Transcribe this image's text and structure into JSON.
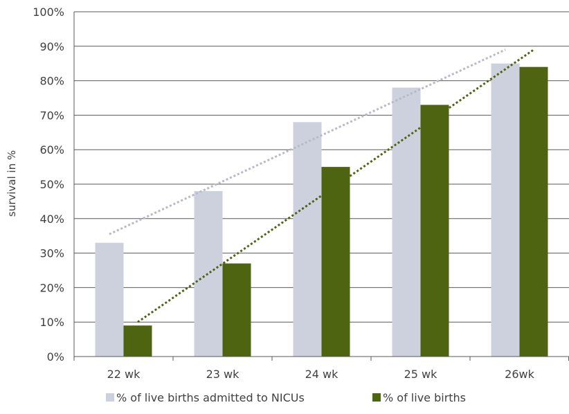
{
  "chart_data": {
    "type": "bar",
    "title": "",
    "xlabel": "",
    "ylabel": "survival in %",
    "ylim": [
      0,
      100
    ],
    "y_ticks": [
      "0%",
      "10%",
      "20%",
      "30%",
      "40%",
      "50%",
      "60%",
      "70%",
      "80%",
      "90%",
      "100%"
    ],
    "categories": [
      "22 wk",
      "23 wk",
      "24 wk",
      "25 wk",
      "26wk"
    ],
    "series": [
      {
        "name": "% of live births admitted to NICUs",
        "values": [
          33,
          48,
          68,
          78,
          85
        ],
        "color": "#cdd1de"
      },
      {
        "name": "% of live births",
        "values": [
          9,
          27,
          55,
          73,
          84
        ],
        "color": "#4f6410"
      }
    ],
    "trendlines": [
      {
        "series": "% of live births admitted to NICUs",
        "start": 35.5,
        "end": 89,
        "color": "#b7b9c6",
        "style": "dotted"
      },
      {
        "series": "% of live births",
        "start": 10,
        "end": 89,
        "color": "#4f6410",
        "style": "dotted"
      }
    ],
    "grid": true,
    "legend_position": "bottom"
  }
}
